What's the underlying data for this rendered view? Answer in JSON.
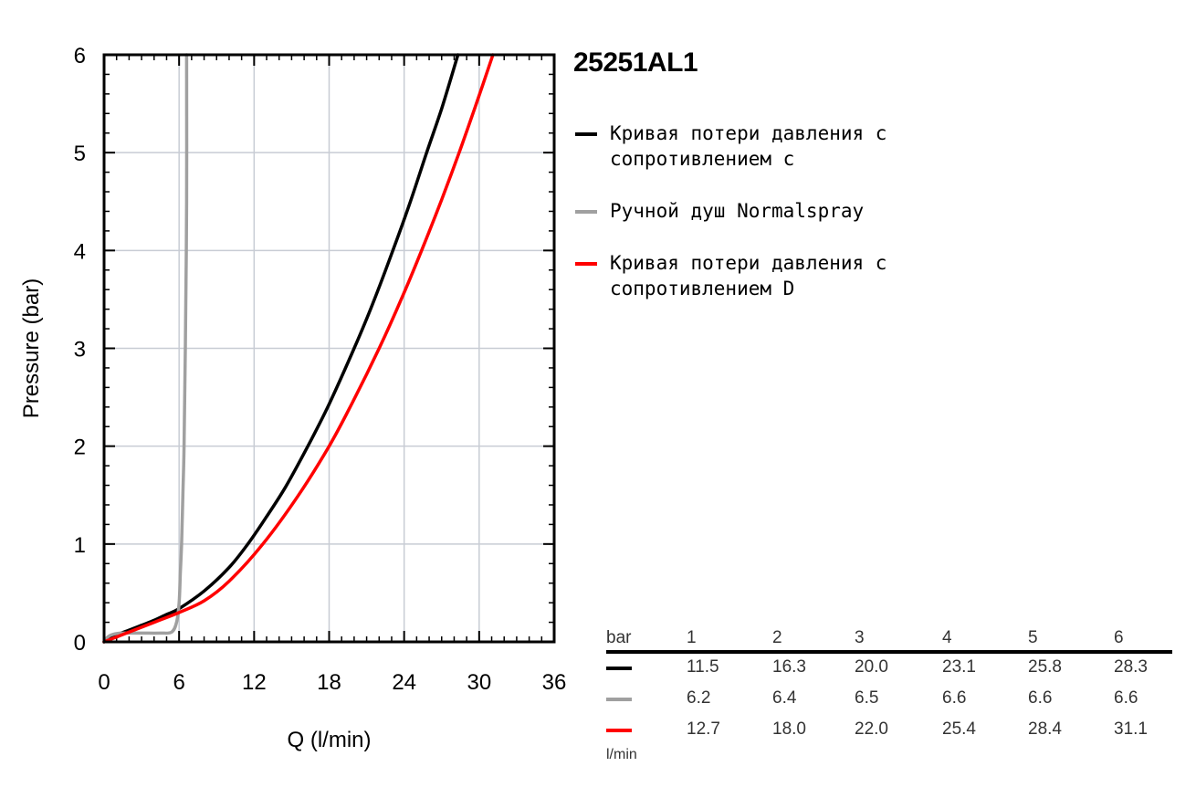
{
  "chart_data": {
    "type": "line",
    "title": "25251AL1",
    "xlabel": "Q (l/min)",
    "ylabel": "Pressure (bar)",
    "xlim": [
      0,
      36
    ],
    "ylim": [
      0,
      6
    ],
    "xticks": [
      "0",
      "6",
      "12",
      "18",
      "24",
      "30",
      "36"
    ],
    "yticks": [
      "0",
      "1",
      "2",
      "3",
      "4",
      "5",
      "6"
    ],
    "grid": true,
    "legend_position": "right",
    "series": [
      {
        "name": "Кривая потери давления с сопротивлением с",
        "color": "#000000",
        "x": [
          0,
          1,
          2,
          3,
          4,
          5,
          6,
          8,
          10,
          11.5,
          13,
          14.5,
          16.3,
          18,
          20.0,
          21.5,
          23.1,
          24.5,
          25.8,
          27,
          28.3
        ],
        "y": [
          0,
          0.07,
          0.12,
          0.17,
          0.22,
          0.28,
          0.34,
          0.52,
          0.76,
          1.0,
          1.28,
          1.58,
          2.0,
          2.43,
          3.0,
          3.46,
          4.0,
          4.5,
          5.0,
          5.45,
          6.0
        ]
      },
      {
        "name": "Ручной душ Normalspray",
        "color": "#a0a0a0",
        "x": [
          0,
          0.3,
          0.8,
          1.5,
          3,
          4.5,
          5.4,
          5.8,
          6.0,
          6.1,
          6.2,
          6.3,
          6.4,
          6.5,
          6.6,
          6.6
        ],
        "y": [
          0,
          0.05,
          0.08,
          0.09,
          0.09,
          0.09,
          0.1,
          0.2,
          0.4,
          0.7,
          1.0,
          1.5,
          2.0,
          3.0,
          4.5,
          6.0
        ]
      },
      {
        "name": "Кривая потери давления с сопротивлением D",
        "color": "#ff0000",
        "x": [
          0,
          2,
          4,
          6,
          8,
          10,
          12.7,
          15.5,
          18.0,
          20,
          22.0,
          23.8,
          25.4,
          27,
          28.4,
          29.8,
          31.1
        ],
        "y": [
          0,
          0.1,
          0.2,
          0.3,
          0.42,
          0.62,
          1.0,
          1.49,
          2.0,
          2.48,
          3.0,
          3.51,
          4.0,
          4.52,
          5.0,
          5.51,
          6.0
        ]
      }
    ]
  },
  "table": {
    "header_label": "bar",
    "columns": [
      "1",
      "2",
      "3",
      "4",
      "5",
      "6"
    ],
    "rows": [
      {
        "color": "#000000",
        "values": [
          "11.5",
          "16.3",
          "20.0",
          "23.1",
          "25.8",
          "28.3"
        ]
      },
      {
        "color": "#a0a0a0",
        "values": [
          "6.2",
          "6.4",
          "6.5",
          "6.6",
          "6.6",
          "6.6"
        ]
      },
      {
        "color": "#ff0000",
        "values": [
          "12.7",
          "18.0",
          "22.0",
          "25.4",
          "28.4",
          "31.1"
        ]
      }
    ],
    "unit_label": "l/min"
  }
}
